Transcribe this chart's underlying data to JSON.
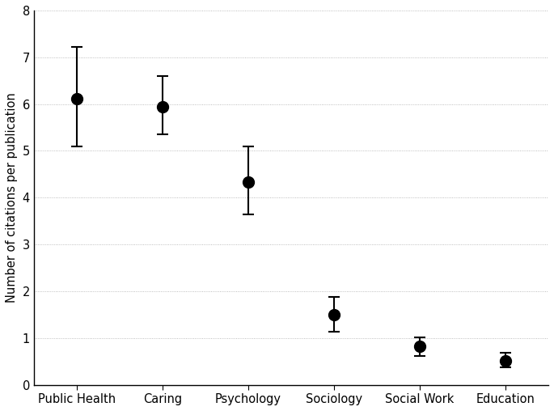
{
  "categories": [
    "Public Health",
    "Caring",
    "Psychology",
    "Sociology",
    "Social Work",
    "Education"
  ],
  "means": [
    6.12,
    5.95,
    4.33,
    1.5,
    0.82,
    0.52
  ],
  "yerr_upper": [
    7.22,
    6.6,
    5.1,
    1.87,
    1.02,
    0.68
  ],
  "yerr_lower": [
    5.1,
    5.35,
    3.65,
    1.13,
    0.62,
    0.37
  ],
  "ylabel": "Number of citations per publication",
  "ylim": [
    0,
    8
  ],
  "yticks": [
    0,
    1,
    2,
    3,
    4,
    5,
    6,
    7,
    8
  ],
  "marker_size": 10,
  "marker_color": "black",
  "line_color": "black",
  "background_color": "#ffffff",
  "grid_color": "#aaaaaa",
  "figsize": [
    6.85,
    5.08
  ],
  "dpi": 100
}
